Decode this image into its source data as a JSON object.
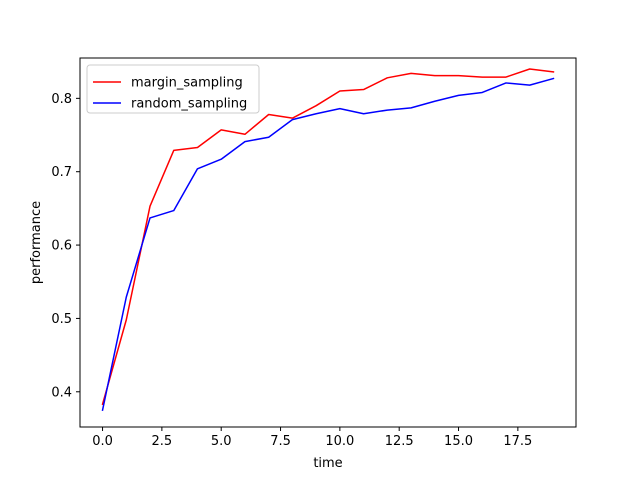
{
  "chart_data": {
    "type": "line",
    "title": "",
    "xlabel": "time",
    "ylabel": "performance",
    "xlim": [
      -0.95,
      19.95
    ],
    "ylim": [
      0.352,
      0.855
    ],
    "xticks": [
      0.0,
      2.5,
      5.0,
      7.5,
      10.0,
      12.5,
      15.0,
      17.5
    ],
    "xtick_labels": [
      "0.0",
      "2.5",
      "5.0",
      "7.5",
      "10.0",
      "12.5",
      "15.0",
      "17.5"
    ],
    "yticks": [
      0.4,
      0.5,
      0.6,
      0.7,
      0.8
    ],
    "ytick_labels": [
      "0.4",
      "0.5",
      "0.6",
      "0.7",
      "0.8"
    ],
    "grid": false,
    "legend": "top-left",
    "x": [
      0,
      1,
      2,
      3,
      4,
      5,
      6,
      7,
      8,
      9,
      10,
      11,
      12,
      13,
      14,
      15,
      16,
      17,
      18,
      19
    ],
    "series": [
      {
        "name": "margin_sampling",
        "color": "#ff0000",
        "values": [
          0.383,
          0.498,
          0.653,
          0.729,
          0.733,
          0.757,
          0.751,
          0.778,
          0.773,
          0.79,
          0.81,
          0.812,
          0.828,
          0.834,
          0.831,
          0.831,
          0.829,
          0.829,
          0.84,
          0.836
        ]
      },
      {
        "name": "random_sampling",
        "color": "#0000ff",
        "values": [
          0.375,
          0.529,
          0.637,
          0.647,
          0.704,
          0.717,
          0.741,
          0.747,
          0.771,
          0.779,
          0.786,
          0.779,
          0.784,
          0.787,
          0.796,
          0.804,
          0.808,
          0.821,
          0.818,
          0.827
        ]
      }
    ]
  }
}
